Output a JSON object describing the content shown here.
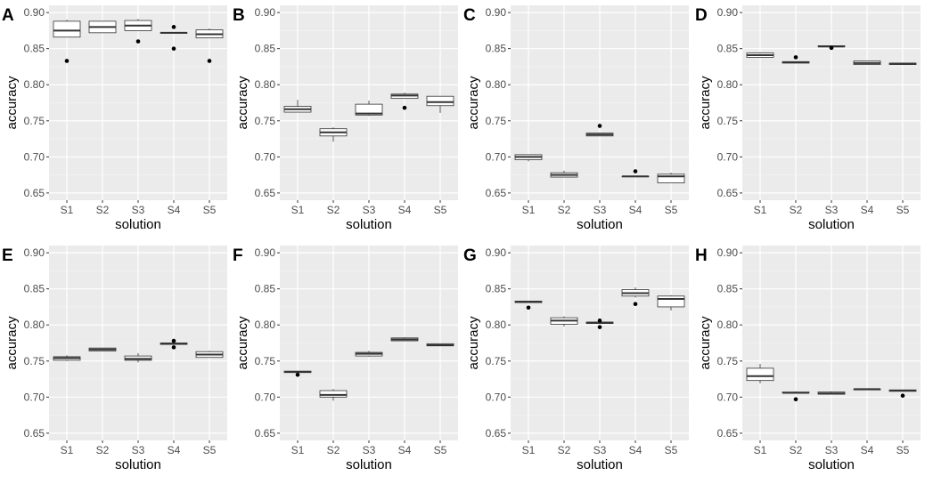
{
  "chart_data": [
    {
      "panel": "A",
      "type": "box",
      "xlabel": "solution",
      "ylabel": "accuracy",
      "categories": [
        "S1",
        "S2",
        "S3",
        "S4",
        "S5"
      ],
      "ylim": [
        0.64,
        0.91
      ],
      "yticks": [
        "0.65",
        "0.70",
        "0.75",
        "0.80",
        "0.85",
        "0.90"
      ],
      "boxes": [
        {
          "min": 0.866,
          "q1": 0.866,
          "median": 0.875,
          "q3": 0.888,
          "max": 0.89,
          "outliers": [
            0.833
          ]
        },
        {
          "min": 0.872,
          "q1": 0.872,
          "median": 0.88,
          "q3": 0.888,
          "max": 0.888,
          "outliers": []
        },
        {
          "min": 0.875,
          "q1": 0.875,
          "median": 0.882,
          "q3": 0.889,
          "max": 0.891,
          "outliers": [
            0.86
          ]
        },
        {
          "min": 0.872,
          "q1": 0.872,
          "median": 0.872,
          "q3": 0.872,
          "max": 0.872,
          "outliers": [
            0.88,
            0.85
          ]
        },
        {
          "min": 0.865,
          "q1": 0.865,
          "median": 0.87,
          "q3": 0.876,
          "max": 0.878,
          "outliers": [
            0.833
          ]
        }
      ]
    },
    {
      "panel": "B",
      "type": "box",
      "xlabel": "solution",
      "ylabel": "accuracy",
      "categories": [
        "S1",
        "S2",
        "S3",
        "S4",
        "S5"
      ],
      "ylim": [
        0.64,
        0.91
      ],
      "yticks": [
        "0.65",
        "0.70",
        "0.75",
        "0.80",
        "0.85",
        "0.90"
      ],
      "boxes": [
        {
          "min": 0.762,
          "q1": 0.762,
          "median": 0.766,
          "q3": 0.77,
          "max": 0.779,
          "outliers": []
        },
        {
          "min": 0.721,
          "q1": 0.729,
          "median": 0.734,
          "q3": 0.739,
          "max": 0.741,
          "outliers": []
        },
        {
          "min": 0.757,
          "q1": 0.758,
          "median": 0.76,
          "q3": 0.773,
          "max": 0.778,
          "outliers": []
        },
        {
          "min": 0.781,
          "q1": 0.781,
          "median": 0.785,
          "q3": 0.787,
          "max": 0.789,
          "outliers": [
            0.768
          ]
        },
        {
          "min": 0.761,
          "q1": 0.771,
          "median": 0.776,
          "q3": 0.784,
          "max": 0.784,
          "outliers": []
        }
      ]
    },
    {
      "panel": "C",
      "type": "box",
      "xlabel": "solution",
      "ylabel": "accuracy",
      "categories": [
        "S1",
        "S2",
        "S3",
        "S4",
        "S5"
      ],
      "ylim": [
        0.64,
        0.91
      ],
      "yticks": [
        "0.65",
        "0.70",
        "0.75",
        "0.80",
        "0.85",
        "0.90"
      ],
      "boxes": [
        {
          "min": 0.694,
          "q1": 0.696,
          "median": 0.7,
          "q3": 0.703,
          "max": 0.703,
          "outliers": []
        },
        {
          "min": 0.672,
          "q1": 0.672,
          "median": 0.675,
          "q3": 0.678,
          "max": 0.681,
          "outliers": []
        },
        {
          "min": 0.729,
          "q1": 0.729,
          "median": 0.731,
          "q3": 0.733,
          "max": 0.733,
          "outliers": [
            0.743
          ]
        },
        {
          "min": 0.673,
          "q1": 0.673,
          "median": 0.673,
          "q3": 0.673,
          "max": 0.673,
          "outliers": [
            0.68
          ]
        },
        {
          "min": 0.664,
          "q1": 0.664,
          "median": 0.673,
          "q3": 0.676,
          "max": 0.678,
          "outliers": []
        }
      ]
    },
    {
      "panel": "D",
      "type": "box",
      "xlabel": "solution",
      "ylabel": "accuracy",
      "categories": [
        "S1",
        "S2",
        "S3",
        "S4",
        "S5"
      ],
      "ylim": [
        0.64,
        0.91
      ],
      "yticks": [
        "0.65",
        "0.70",
        "0.75",
        "0.80",
        "0.85",
        "0.90"
      ],
      "boxes": [
        {
          "min": 0.838,
          "q1": 0.838,
          "median": 0.841,
          "q3": 0.844,
          "max": 0.845,
          "outliers": []
        },
        {
          "min": 0.83,
          "q1": 0.83,
          "median": 0.831,
          "q3": 0.832,
          "max": 0.832,
          "outliers": [
            0.838
          ]
        },
        {
          "min": 0.853,
          "q1": 0.853,
          "median": 0.853,
          "q3": 0.854,
          "max": 0.854,
          "outliers": [
            0.851
          ]
        },
        {
          "min": 0.828,
          "q1": 0.828,
          "median": 0.83,
          "q3": 0.833,
          "max": 0.833,
          "outliers": []
        },
        {
          "min": 0.828,
          "q1": 0.828,
          "median": 0.829,
          "q3": 0.83,
          "max": 0.83,
          "outliers": []
        }
      ]
    },
    {
      "panel": "E",
      "type": "box",
      "xlabel": "solution",
      "ylabel": "accuracy",
      "categories": [
        "S1",
        "S2",
        "S3",
        "S4",
        "S5"
      ],
      "ylim": [
        0.64,
        0.91
      ],
      "yticks": [
        "0.65",
        "0.70",
        "0.75",
        "0.80",
        "0.85",
        "0.90"
      ],
      "boxes": [
        {
          "min": 0.75,
          "q1": 0.751,
          "median": 0.754,
          "q3": 0.756,
          "max": 0.758,
          "outliers": []
        },
        {
          "min": 0.764,
          "q1": 0.764,
          "median": 0.766,
          "q3": 0.768,
          "max": 0.768,
          "outliers": []
        },
        {
          "min": 0.748,
          "q1": 0.751,
          "median": 0.753,
          "q3": 0.757,
          "max": 0.761,
          "outliers": []
        },
        {
          "min": 0.773,
          "q1": 0.773,
          "median": 0.774,
          "q3": 0.775,
          "max": 0.775,
          "outliers": [
            0.778,
            0.769
          ]
        },
        {
          "min": 0.755,
          "q1": 0.755,
          "median": 0.759,
          "q3": 0.763,
          "max": 0.764,
          "outliers": []
        }
      ]
    },
    {
      "panel": "F",
      "type": "box",
      "xlabel": "solution",
      "ylabel": "accuracy",
      "categories": [
        "S1",
        "S2",
        "S3",
        "S4",
        "S5"
      ],
      "ylim": [
        0.64,
        0.91
      ],
      "yticks": [
        "0.65",
        "0.70",
        "0.75",
        "0.80",
        "0.85",
        "0.90"
      ],
      "boxes": [
        {
          "min": 0.734,
          "q1": 0.734,
          "median": 0.735,
          "q3": 0.736,
          "max": 0.736,
          "outliers": [
            0.731
          ]
        },
        {
          "min": 0.695,
          "q1": 0.7,
          "median": 0.703,
          "q3": 0.709,
          "max": 0.711,
          "outliers": []
        },
        {
          "min": 0.756,
          "q1": 0.757,
          "median": 0.76,
          "q3": 0.762,
          "max": 0.764,
          "outliers": []
        },
        {
          "min": 0.778,
          "q1": 0.778,
          "median": 0.78,
          "q3": 0.782,
          "max": 0.783,
          "outliers": []
        },
        {
          "min": 0.771,
          "q1": 0.771,
          "median": 0.772,
          "q3": 0.774,
          "max": 0.774,
          "outliers": []
        }
      ]
    },
    {
      "panel": "G",
      "type": "box",
      "xlabel": "solution",
      "ylabel": "accuracy",
      "categories": [
        "S1",
        "S2",
        "S3",
        "S4",
        "S5"
      ],
      "ylim": [
        0.64,
        0.91
      ],
      "yticks": [
        "0.65",
        "0.70",
        "0.75",
        "0.80",
        "0.85",
        "0.90"
      ],
      "boxes": [
        {
          "min": 0.831,
          "q1": 0.831,
          "median": 0.832,
          "q3": 0.833,
          "max": 0.833,
          "outliers": [
            0.824
          ]
        },
        {
          "min": 0.798,
          "q1": 0.801,
          "median": 0.806,
          "q3": 0.81,
          "max": 0.812,
          "outliers": []
        },
        {
          "min": 0.802,
          "q1": 0.802,
          "median": 0.803,
          "q3": 0.804,
          "max": 0.804,
          "outliers": [
            0.806,
            0.797
          ]
        },
        {
          "min": 0.838,
          "q1": 0.84,
          "median": 0.844,
          "q3": 0.849,
          "max": 0.852,
          "outliers": [
            0.829
          ]
        },
        {
          "min": 0.82,
          "q1": 0.825,
          "median": 0.836,
          "q3": 0.84,
          "max": 0.841,
          "outliers": []
        }
      ]
    },
    {
      "panel": "H",
      "type": "box",
      "xlabel": "solution",
      "ylabel": "accuracy",
      "categories": [
        "S1",
        "S2",
        "S3",
        "S4",
        "S5"
      ],
      "ylim": [
        0.64,
        0.91
      ],
      "yticks": [
        "0.65",
        "0.70",
        "0.75",
        "0.80",
        "0.85",
        "0.90"
      ],
      "boxes": [
        {
          "min": 0.719,
          "q1": 0.723,
          "median": 0.729,
          "q3": 0.74,
          "max": 0.746,
          "outliers": []
        },
        {
          "min": 0.706,
          "q1": 0.706,
          "median": 0.706,
          "q3": 0.707,
          "max": 0.708,
          "outliers": [
            0.697
          ]
        },
        {
          "min": 0.704,
          "q1": 0.704,
          "median": 0.705,
          "q3": 0.707,
          "max": 0.708,
          "outliers": []
        },
        {
          "min": 0.71,
          "q1": 0.71,
          "median": 0.711,
          "q3": 0.711,
          "max": 0.711,
          "outliers": []
        },
        {
          "min": 0.708,
          "q1": 0.708,
          "median": 0.709,
          "q3": 0.71,
          "max": 0.71,
          "outliers": [
            0.702
          ]
        }
      ]
    }
  ]
}
